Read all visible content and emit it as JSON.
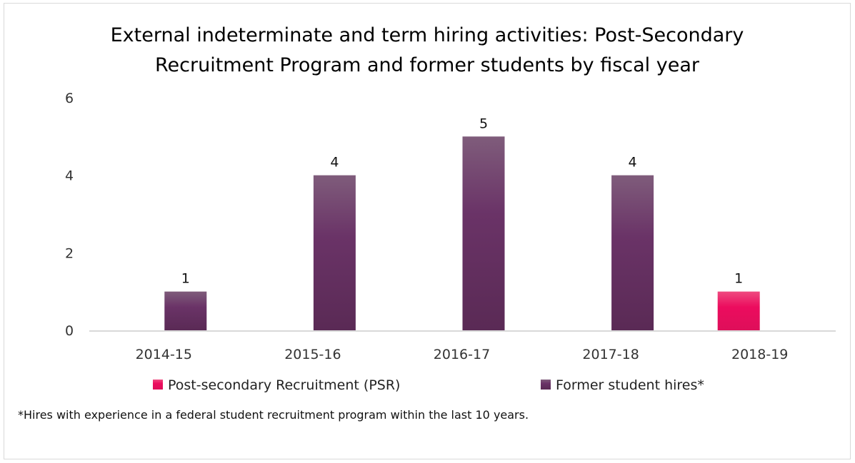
{
  "chart_data": {
    "type": "bar",
    "title_lines": [
      "External indeterminate and term hiring activities: Post-Secondary",
      "Recruitment Program and former students by fiscal year"
    ],
    "categories": [
      "2014-15",
      "2015-16",
      "2016-17",
      "2017-18",
      "2018-19"
    ],
    "series": [
      {
        "name": "Post-secondary Recruitment (PSR)",
        "values": [
          0,
          0,
          0,
          0,
          1
        ],
        "color": "#e8105e"
      },
      {
        "name": "Former student hires*",
        "values": [
          1,
          4,
          5,
          4,
          0
        ],
        "color": "#6a3163"
      }
    ],
    "yticks": [
      "0",
      "2",
      "4",
      "6"
    ],
    "ylim": [
      0,
      6
    ],
    "xlabel": "",
    "ylabel": "",
    "grid": false,
    "legend": "bottom",
    "footnote": "*Hires with experience in a federal student recruitment program within the last 10 years."
  }
}
